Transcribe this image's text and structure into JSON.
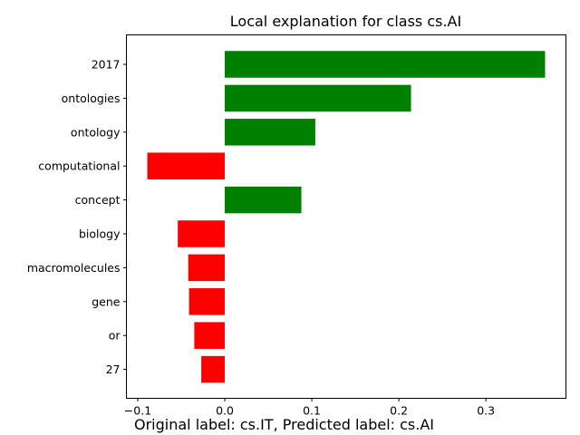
{
  "chart_data": {
    "type": "bar",
    "orientation": "horizontal",
    "title": "Local explanation for class cs.AI",
    "xlabel": "",
    "ylabel": "",
    "categories": [
      "2017",
      "ontologies",
      "ontology",
      "computational",
      "concept",
      "biology",
      "macromolecules",
      "gene",
      "or",
      "27"
    ],
    "values": [
      0.368,
      0.214,
      0.104,
      -0.089,
      0.088,
      -0.054,
      -0.042,
      -0.041,
      -0.035,
      -0.027
    ],
    "xlim": [
      -0.113,
      0.392
    ],
    "xticks": [
      -0.1,
      0.0,
      0.1,
      0.2,
      0.3
    ],
    "xtick_labels": [
      "−0.1",
      "0.0",
      "0.1",
      "0.2",
      "0.3"
    ],
    "colors": {
      "positive": "#008000",
      "negative": "#ff0000"
    },
    "grid": false,
    "legend": "none"
  },
  "caption": "Original label: cs.IT, Predicted label: cs.AI"
}
